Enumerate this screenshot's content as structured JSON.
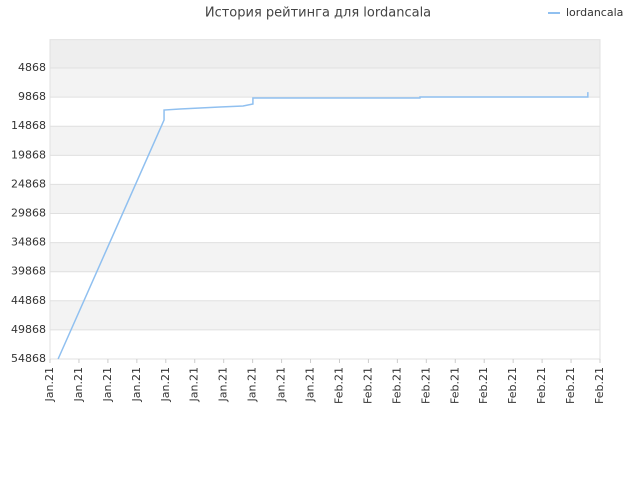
{
  "chart_data": {
    "type": "line",
    "title": "История рейтинга для lordancala",
    "series": [
      {
        "name": "lordancala",
        "color": "#90c0f0",
        "x": [
          0.28,
          3.94,
          3.94,
          4.49,
          5.18,
          5.87,
          6.67,
          7.01,
          7.01,
          12.78,
          12.78,
          18.58,
          18.58
        ],
        "values": [
          54868,
          13803,
          12085,
          11900,
          11740,
          11570,
          11400,
          11050,
          10020,
          10020,
          9850,
          9850,
          9000
        ]
      }
    ],
    "xlim": [
      0,
      19
    ],
    "xticks": [
      {
        "value": 0,
        "label": "Jan.21"
      },
      {
        "value": 1,
        "label": "Jan.21"
      },
      {
        "value": 2,
        "label": "Jan.21"
      },
      {
        "value": 3,
        "label": "Jan.21"
      },
      {
        "value": 4,
        "label": "Jan.21"
      },
      {
        "value": 5,
        "label": "Jan.21"
      },
      {
        "value": 6,
        "label": "Jan.21"
      },
      {
        "value": 7,
        "label": "Jan.21"
      },
      {
        "value": 8,
        "label": "Jan.21"
      },
      {
        "value": 9,
        "label": "Jan.21"
      },
      {
        "value": 10,
        "label": "Feb.21"
      },
      {
        "value": 11,
        "label": "Feb.21"
      },
      {
        "value": 12,
        "label": "Feb.21"
      },
      {
        "value": 13,
        "label": "Feb.21"
      },
      {
        "value": 14,
        "label": "Feb.21"
      },
      {
        "value": 15,
        "label": "Feb.21"
      },
      {
        "value": 16,
        "label": "Feb.21"
      },
      {
        "value": 17,
        "label": "Feb.21"
      },
      {
        "value": 18,
        "label": "Feb.21"
      },
      {
        "value": 19,
        "label": "Feb.21"
      }
    ],
    "ylim": [
      54868,
      0
    ],
    "yticks": [
      4868,
      9868,
      14868,
      19868,
      24868,
      29868,
      34868,
      39868,
      44868,
      49868,
      54868
    ],
    "grid": true,
    "legend": "top-right"
  }
}
